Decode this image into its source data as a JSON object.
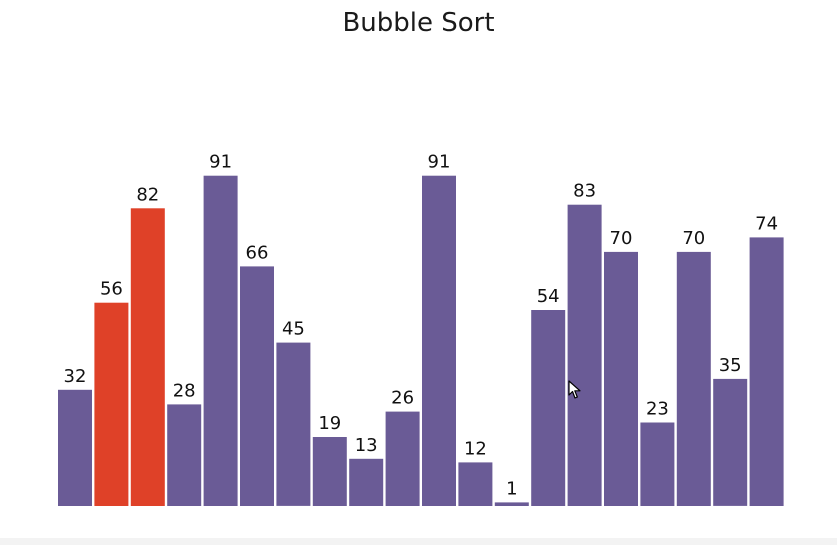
{
  "chart_data": {
    "type": "bar",
    "title": "Bubble Sort",
    "xlabel": "",
    "ylabel": "",
    "ylim": [
      0,
      100
    ],
    "values": [
      32,
      56,
      82,
      28,
      91,
      66,
      45,
      19,
      13,
      26,
      91,
      12,
      1,
      54,
      83,
      70,
      23,
      70,
      35,
      74
    ],
    "highlighted_indices": [
      1,
      2
    ],
    "colors": {
      "default": "#6a5b96",
      "highlight": "#df4128"
    }
  },
  "ui": {
    "cursor_icon": "mouse-pointer-icon"
  }
}
